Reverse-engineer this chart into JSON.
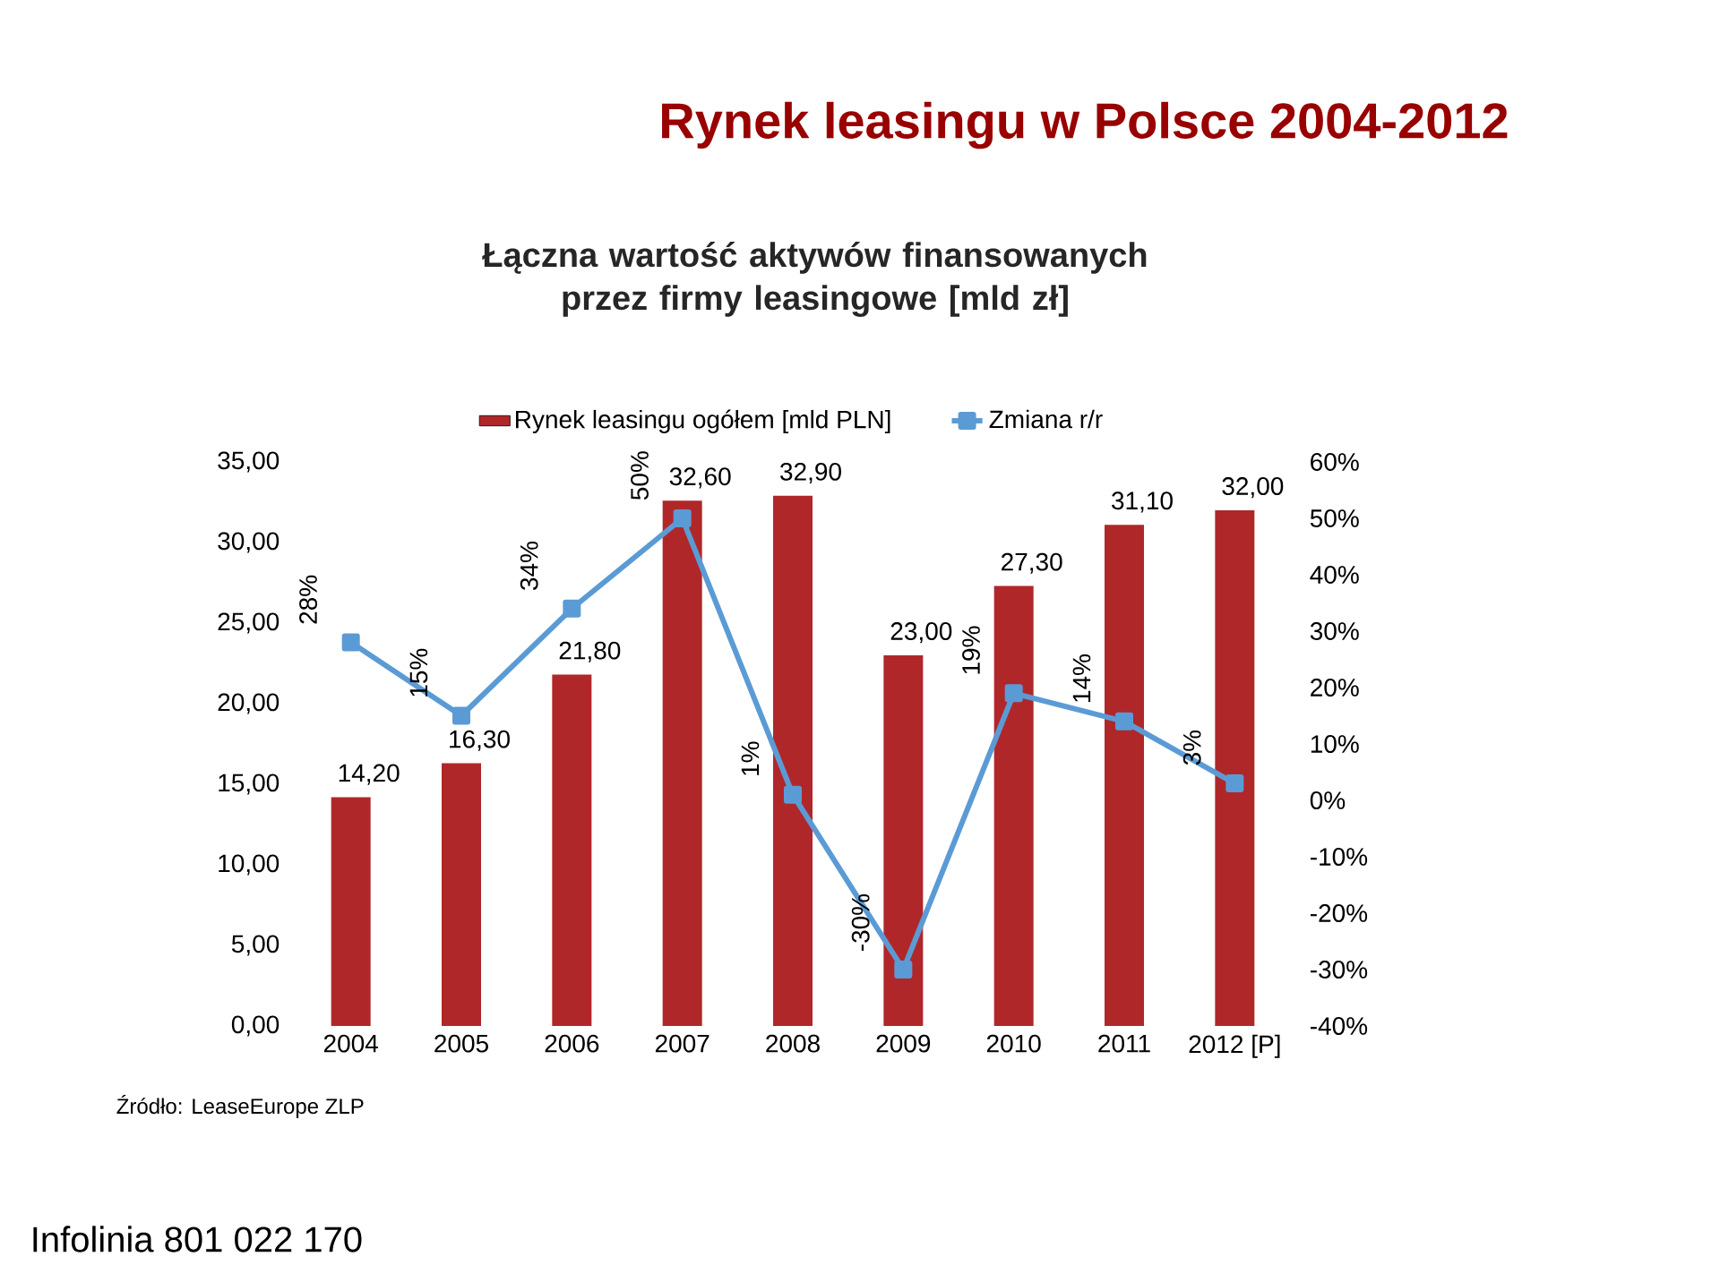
{
  "chart_data": {
    "type": "bar",
    "title": "Rynek leasingu w Polsce 2004-2012",
    "subtitle": "Łączna wartość aktywów finansowanych przez firmy leasingowe [mld zł]",
    "categories": [
      "2004",
      "2005",
      "2006",
      "2007",
      "2008",
      "2009",
      "2010",
      "2011",
      "2012 [P]"
    ],
    "series": [
      {
        "name": "Rynek leasingu ogółem [mld PLN]",
        "color": "#b0272a",
        "values": [
          14.2,
          16.3,
          21.8,
          32.6,
          32.9,
          23.0,
          27.3,
          31.1,
          32.0
        ],
        "value_labels": [
          "14,20",
          "16,30",
          "21,80",
          "32,60",
          "32,90",
          "23,00",
          "27,30",
          "31,10",
          "32,00"
        ]
      },
      {
        "name": "Zmiana r/r",
        "type": "line",
        "axis": "y2",
        "color": "#5b9bd5",
        "values": [
          28,
          15,
          34,
          50,
          1,
          -30,
          19,
          14,
          3
        ],
        "value_labels": [
          "28%",
          "15%",
          "34%",
          "50%",
          "1%",
          "-30%",
          "19%",
          "14%",
          "3%"
        ]
      }
    ],
    "marker": "square",
    "ylim": [
      0,
      35
    ],
    "yticks": [
      {
        "value": 0,
        "label": "0,00"
      },
      {
        "value": 5,
        "label": "5,00"
      },
      {
        "value": 10,
        "label": "10,00"
      },
      {
        "value": 15,
        "label": "15,00"
      },
      {
        "value": 20,
        "label": "20,00"
      },
      {
        "value": 25,
        "label": "25,00"
      },
      {
        "value": 30,
        "label": "30,00"
      },
      {
        "value": 35,
        "label": "35,00"
      }
    ],
    "y2lim": [
      -40,
      60
    ],
    "y2ticks": [
      {
        "value": -40,
        "label": "-40%"
      },
      {
        "value": -30,
        "label": "-30%"
      },
      {
        "value": -20,
        "label": "-20%"
      },
      {
        "value": -10,
        "label": "-10%"
      },
      {
        "value": 0,
        "label": "0%"
      },
      {
        "value": 10,
        "label": "10%"
      },
      {
        "value": 20,
        "label": "20%"
      },
      {
        "value": 30,
        "label": "30%"
      },
      {
        "value": 40,
        "label": "40%"
      },
      {
        "value": 50,
        "label": "50%"
      },
      {
        "value": 60,
        "label": "60%"
      }
    ],
    "legend": "top",
    "annotations": [
      "Źródło: LeaseEurope ZLP",
      "Infolinia 801 022 170"
    ]
  }
}
